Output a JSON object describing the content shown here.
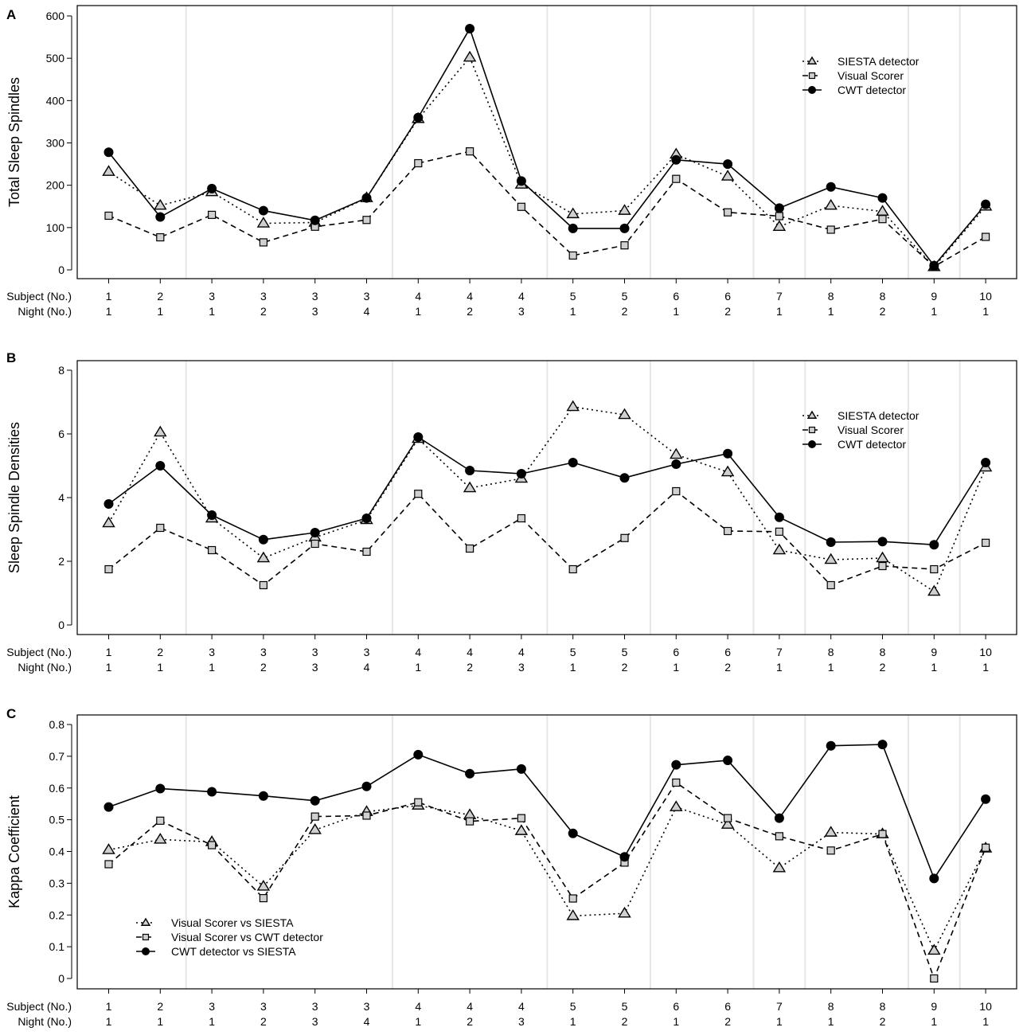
{
  "categories_subject": [
    "1",
    "2",
    "3",
    "3",
    "3",
    "3",
    "4",
    "4",
    "4",
    "5",
    "5",
    "6",
    "6",
    "7",
    "8",
    "8",
    "9",
    "10"
  ],
  "categories_night": [
    "1",
    "1",
    "1",
    "2",
    "3",
    "4",
    "1",
    "2",
    "3",
    "1",
    "2",
    "1",
    "2",
    "1",
    "1",
    "2",
    "1",
    "1"
  ],
  "row_labels": {
    "subject": "Subject (No.)",
    "night": "Night (No.)"
  },
  "chart_data": [
    {
      "panel": "A",
      "type": "line",
      "ylabel": "Total Sleep Spindles",
      "ylim": [
        0,
        600
      ],
      "yticks": [
        "0",
        "100",
        "200",
        "300",
        "400",
        "500",
        "600"
      ],
      "ytick_values": [
        0,
        100,
        200,
        300,
        400,
        500,
        600
      ],
      "legend_position": "top-right",
      "series": [
        {
          "name": "SIESTA detector",
          "marker": "triangle",
          "dash": "dotted",
          "values": [
            232,
            152,
            184,
            110,
            112,
            170,
            357,
            502,
            202,
            132,
            140,
            273,
            221,
            102,
            152,
            138,
            7,
            150
          ]
        },
        {
          "name": "Visual Scorer",
          "marker": "square",
          "dash": "dashed",
          "values": [
            128,
            77,
            130,
            65,
            102,
            118,
            252,
            280,
            149,
            34,
            58,
            215,
            136,
            127,
            95,
            120,
            8,
            78
          ]
        },
        {
          "name": "CWT detector",
          "marker": "circle",
          "dash": "solid",
          "values": [
            278,
            125,
            192,
            140,
            117,
            170,
            360,
            570,
            210,
            98,
            98,
            260,
            250,
            146,
            196,
            170,
            10,
            155
          ]
        }
      ]
    },
    {
      "panel": "B",
      "type": "line",
      "ylabel": "Sleep Spindle Densities",
      "ylim": [
        0,
        8
      ],
      "yticks": [
        "0",
        "2",
        "4",
        "6",
        "8"
      ],
      "ytick_values": [
        0,
        2,
        4,
        6,
        8
      ],
      "legend_position": "top-right",
      "series": [
        {
          "name": "SIESTA detector",
          "marker": "triangle",
          "dash": "dotted",
          "values": [
            3.2,
            6.05,
            3.35,
            2.1,
            2.75,
            3.3,
            5.85,
            4.3,
            4.6,
            6.85,
            6.6,
            5.35,
            4.8,
            2.35,
            2.05,
            2.1,
            1.05,
            4.95
          ]
        },
        {
          "name": "Visual Scorer",
          "marker": "square",
          "dash": "dashed",
          "values": [
            1.75,
            3.05,
            2.35,
            1.25,
            2.55,
            2.3,
            4.12,
            2.4,
            3.35,
            1.75,
            2.73,
            4.2,
            2.95,
            2.93,
            1.25,
            1.85,
            1.75,
            2.58
          ]
        },
        {
          "name": "CWT detector",
          "marker": "circle",
          "dash": "solid",
          "values": [
            3.8,
            5.0,
            3.45,
            2.68,
            2.9,
            3.35,
            5.9,
            4.85,
            4.75,
            5.1,
            4.62,
            5.05,
            5.38,
            3.38,
            2.6,
            2.62,
            2.52,
            5.1
          ]
        }
      ]
    },
    {
      "panel": "C",
      "type": "line",
      "ylabel": "Kappa Coefficient",
      "ylim": [
        0,
        0.8
      ],
      "yticks": [
        "0",
        "0.1",
        "0.2",
        "0.3",
        "0.4",
        "0.5",
        "0.6",
        "0.7",
        "0.8"
      ],
      "ytick_values": [
        0,
        0.1,
        0.2,
        0.3,
        0.4,
        0.5,
        0.6,
        0.7,
        0.8
      ],
      "legend_position": "bottom-left",
      "series": [
        {
          "name": "Visual Scorer vs SIESTA",
          "marker": "triangle",
          "dash": "dotted",
          "values": [
            0.405,
            0.438,
            0.43,
            0.29,
            0.468,
            0.525,
            0.545,
            0.515,
            0.465,
            0.197,
            0.205,
            0.54,
            0.485,
            0.348,
            0.46,
            0.455,
            0.088,
            0.41
          ]
        },
        {
          "name": "Visual Scorer vs CWT detector",
          "marker": "square",
          "dash": "dashed",
          "values": [
            0.36,
            0.497,
            0.42,
            0.253,
            0.51,
            0.513,
            0.555,
            0.495,
            0.505,
            0.252,
            0.365,
            0.617,
            0.505,
            0.448,
            0.403,
            0.455,
            0.0,
            0.412
          ]
        },
        {
          "name": "CWT detector vs SIESTA",
          "marker": "circle",
          "dash": "solid",
          "values": [
            0.54,
            0.598,
            0.588,
            0.575,
            0.56,
            0.605,
            0.705,
            0.645,
            0.66,
            0.457,
            0.383,
            0.673,
            0.687,
            0.505,
            0.733,
            0.737,
            0.315,
            0.565
          ]
        }
      ]
    }
  ]
}
